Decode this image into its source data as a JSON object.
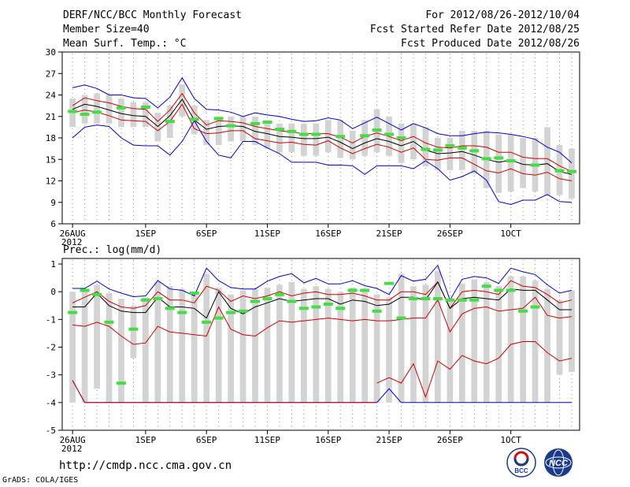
{
  "header": {
    "title": "DERF/NCC/BCC Monthly Forecast",
    "member_size": "Member Size=40",
    "period": "For 2012/08/26-2012/10/04",
    "fcst_start": "Fcst Started Refer Date 2012/08/25",
    "fcst_produced": "Fcst Produced Date 2012/08/26"
  },
  "footer": {
    "url": "http://cmdp.ncc.cma.gov.cn",
    "credit": "GrADS: COLA/IGES",
    "logo_bcc": "BCC",
    "logo_ncc": "NCC"
  },
  "colors": {
    "box": "#d3d3d3",
    "mean": "#000000",
    "quartile": "#cc0000",
    "extreme": "#0000cc",
    "observed": "#44dd44"
  },
  "chart_data": [
    {
      "type": "box",
      "title": "Mean Surf. Temp.: °C",
      "ylim": [
        6,
        30
      ],
      "yticks": [
        6,
        9,
        12,
        15,
        18,
        21,
        24,
        27,
        30
      ],
      "xticks": [
        {
          "day": 0,
          "label": "26AUG",
          "sub": "2012"
        },
        {
          "day": 6,
          "label": "1SEP"
        },
        {
          "day": 11,
          "label": "6SEP"
        },
        {
          "day": 16,
          "label": "11SEP"
        },
        {
          "day": 21,
          "label": "16SEP"
        },
        {
          "day": 26,
          "label": "21SEP"
        },
        {
          "day": 31,
          "label": "26SEP"
        },
        {
          "day": 36,
          "label": "1OCT"
        }
      ],
      "max": [
        25,
        25.4,
        24.9,
        24,
        24,
        23.6,
        23.5,
        22.2,
        23.7,
        26.4,
        23.5,
        22,
        21.9,
        21.6,
        21,
        21.5,
        21.2,
        21,
        20.6,
        20.3,
        20.4,
        20.8,
        20.5,
        19.3,
        20.1,
        20.9,
        20,
        19.1,
        20,
        19.4,
        18.6,
        18.3,
        18.3,
        18.6,
        18.8,
        18.7,
        18.5,
        18.2,
        17.8,
        16.7,
        16,
        14.5
      ],
      "q3": [
        22.5,
        23.6,
        23.2,
        22.9,
        22.4,
        22.1,
        22,
        20.3,
        21.9,
        24.2,
        21.5,
        19.8,
        20.4,
        20.3,
        20.1,
        19.6,
        19.3,
        19,
        18.8,
        18.6,
        18.6,
        18.6,
        18.1,
        17.3,
        18.2,
        18.7,
        18.2,
        17.6,
        18.2,
        17.3,
        16.7,
        16.6,
        16.9,
        16.9,
        16.7,
        16,
        16,
        15.3,
        15.1,
        15.1,
        14.1,
        13.3
      ],
      "mean": [
        22,
        22.7,
        22.4,
        21.9,
        21.4,
        21.1,
        21,
        19.6,
        21.1,
        23.4,
        20.5,
        19.2,
        19.6,
        19.7,
        19.6,
        18.9,
        18.6,
        18.2,
        18.1,
        17.9,
        17.9,
        18.1,
        17.4,
        16.5,
        17.3,
        17.9,
        17.5,
        16.9,
        17.5,
        16.3,
        15.8,
        15.9,
        16.1,
        15.6,
        15,
        14.6,
        14.9,
        14.3,
        14.2,
        14.4,
        13.3,
        12.9
      ],
      "q1": [
        21.5,
        21.9,
        21.6,
        21.1,
        20.5,
        20.4,
        20.3,
        19,
        20.3,
        22.7,
        19.3,
        18.6,
        18.7,
        19,
        19,
        17.9,
        17.6,
        17.3,
        17.4,
        17.1,
        17,
        17.6,
        16.6,
        15.8,
        16.5,
        17.1,
        16.7,
        16,
        16.6,
        15,
        14.9,
        15.2,
        15.2,
        14.3,
        13.4,
        13.1,
        13.7,
        13,
        12.8,
        13.2,
        12.3,
        12
      ],
      "min": [
        18,
        19.5,
        19.8,
        19.6,
        18,
        17,
        16.9,
        16.9,
        15.6,
        17.5,
        20.4,
        17.5,
        15.6,
        15.2,
        17.5,
        17.5,
        16.6,
        15.8,
        14.6,
        14.6,
        14.6,
        14.2,
        14.2,
        14.1,
        12.9,
        14.1,
        14.1,
        14.1,
        13.7,
        14.8,
        13.7,
        12.1,
        12.6,
        13.4,
        12.1,
        9.1,
        8.7,
        9.3,
        9.3,
        10.1,
        9.1,
        9
      ],
      "box_low": [
        19.5,
        20,
        20,
        20,
        19.5,
        19.5,
        19.5,
        17.5,
        18,
        21,
        18.5,
        17,
        17,
        17.5,
        17.5,
        17,
        16.5,
        16,
        16,
        15.5,
        15.5,
        16,
        15.2,
        15,
        15.5,
        16,
        15.5,
        14.5,
        15,
        14,
        13.5,
        13.5,
        13.5,
        13,
        11,
        10.3,
        10.5,
        11,
        10.5,
        10,
        10,
        9.5
      ],
      "box_high": [
        23.5,
        24,
        24.2,
        24,
        23.5,
        23,
        23,
        21.5,
        22.5,
        25.5,
        22.5,
        20.5,
        21,
        21,
        21,
        21,
        20,
        20,
        20,
        20,
        20,
        20.5,
        20.5,
        19,
        20.5,
        22,
        21,
        20,
        20,
        19.5,
        18,
        18,
        19,
        19,
        19,
        18.5,
        18.5,
        18,
        18,
        19.5,
        17,
        16.5
      ],
      "observed": [
        21.7,
        21.3,
        21.6,
        null,
        22.2,
        null,
        22.3,
        null,
        20.3,
        null,
        20.6,
        null,
        20.7,
        19.7,
        null,
        20,
        20.2,
        19.2,
        18.9,
        18.5,
        18.5,
        null,
        18.2,
        null,
        18.3,
        19.1,
        18.5,
        18,
        null,
        16.4,
        16.3,
        16.9,
        16.6,
        16.2,
        15.1,
        15.2,
        14.8,
        null,
        14.2,
        null,
        13.4,
        13.3
      ]
    },
    {
      "type": "box",
      "title": "Prec.: log(mm/d)",
      "ylim": [
        -5,
        1.2
      ],
      "yticks": [
        -5,
        -4,
        -3,
        -2,
        -1,
        0,
        1
      ],
      "xticks": [
        {
          "day": 0,
          "label": "26AUG",
          "sub": "2012"
        },
        {
          "day": 6,
          "label": "1SEP"
        },
        {
          "day": 11,
          "label": "6SEP"
        },
        {
          "day": 16,
          "label": "11SEP"
        },
        {
          "day": 21,
          "label": "16SEP"
        },
        {
          "day": 26,
          "label": "21SEP"
        },
        {
          "day": 31,
          "label": "26SEP"
        },
        {
          "day": 36,
          "label": "1OCT"
        }
      ],
      "max": [
        0.12,
        0.12,
        0.38,
        0.1,
        -0.05,
        -0.18,
        -0.15,
        0.4,
        0.1,
        0.05,
        -0.15,
        0.85,
        0.4,
        0.15,
        0.1,
        0.1,
        0.38,
        0.55,
        0.65,
        0.32,
        0.48,
        0.28,
        0.28,
        0.4,
        0.22,
        0.12,
        -0.1,
        0.58,
        0.38,
        0.45,
        0.95,
        -0.3,
        0.45,
        0.55,
        0.5,
        0.3,
        0.85,
        0.72,
        0.62,
        0.25,
        -0.05,
        0.05
      ],
      "q3": [
        -0.4,
        -0.2,
        0.0,
        -0.35,
        -0.55,
        -0.6,
        -0.5,
        0.0,
        -0.3,
        -0.3,
        -0.4,
        0.2,
        0.05,
        -0.35,
        -0.15,
        -0.25,
        -0.15,
        0.0,
        -0.15,
        -0.05,
        0.0,
        -0.1,
        -0.1,
        -0.05,
        -0.15,
        -0.3,
        -0.3,
        0.0,
        0.0,
        -0.1,
        0.35,
        -0.6,
        0.0,
        0.05,
        0.0,
        -0.1,
        0.4,
        0.2,
        0.15,
        -0.1,
        -0.4,
        -0.3
      ],
      "mean": [
        -0.55,
        -0.55,
        -0.05,
        -0.5,
        -0.7,
        -0.75,
        -0.75,
        -0.2,
        -0.55,
        -0.55,
        -0.6,
        -0.95,
        0.0,
        -0.6,
        -0.8,
        -0.55,
        -0.4,
        -0.25,
        -0.35,
        -0.3,
        -0.25,
        -0.25,
        -0.45,
        -0.3,
        -0.35,
        -0.5,
        -0.45,
        -0.2,
        -0.2,
        -0.3,
        0.35,
        -0.6,
        -0.25,
        -0.2,
        -0.25,
        -0.3,
        0.1,
        0.05,
        0.05,
        -0.3,
        -0.65,
        -0.65
      ],
      "q1": [
        -1.2,
        -1.25,
        -1.1,
        -1.25,
        -1.6,
        -1.9,
        -1.85,
        -1.25,
        -1.45,
        -1.5,
        -1.55,
        -1.6,
        -0.55,
        -1.35,
        -1.55,
        -1.6,
        -1.3,
        -1.05,
        -1.1,
        -1.05,
        -1.0,
        -0.95,
        -1.0,
        -1.05,
        -1.0,
        -1.05,
        -1.05,
        -1.0,
        -0.95,
        -0.95,
        -0.3,
        -1.45,
        -0.8,
        -0.6,
        -0.55,
        -0.7,
        -0.65,
        -0.6,
        -0.2,
        -0.85,
        -0.95,
        -0.9
      ],
      "min": [
        -3.2,
        -4,
        -4,
        -4,
        -4,
        -4,
        -4,
        -4,
        -4,
        -4,
        -4,
        -4,
        -4,
        -4,
        -4,
        -4,
        -4,
        -4,
        -4,
        -4,
        -4,
        -4,
        -4,
        -4,
        -4,
        -4,
        -3.5,
        -4,
        -4,
        -4,
        -4,
        -4,
        -4,
        -4,
        -4,
        -4,
        -4,
        -4,
        -4,
        -4,
        -4,
        -4
      ],
      "q1min": [
        null,
        null,
        null,
        null,
        null,
        null,
        null,
        null,
        null,
        null,
        null,
        null,
        null,
        null,
        null,
        null,
        null,
        null,
        null,
        null,
        null,
        null,
        null,
        null,
        null,
        -3.3,
        -3.1,
        -3.3,
        -2.6,
        -3.8,
        -2.5,
        -2.8,
        -2.3,
        -2.5,
        -2.6,
        -2.4,
        -1.9,
        -1.8,
        -1.8,
        -2.2,
        -2.5,
        -2.4
      ],
      "q1min_start": 26,
      "box_low": [
        -4,
        -4,
        -3.5,
        -4,
        -4,
        -2.4,
        -4,
        -4,
        -4,
        -4,
        -4,
        -4,
        -4,
        -4,
        -4,
        -4,
        -4,
        -4,
        -4,
        -4,
        -4,
        -4,
        -4,
        -4,
        -4,
        -4,
        -4,
        -4,
        -4,
        -4,
        -4,
        -4,
        -4,
        -4,
        -4,
        -4,
        -4,
        -4,
        -4,
        -4,
        -3,
        -2.9
      ],
      "box_high": [
        0.0,
        0.1,
        0.25,
        -0.05,
        -0.25,
        -0.5,
        -0.2,
        0.35,
        0.2,
        0.1,
        -0.1,
        0.65,
        0.15,
        -0.1,
        0.05,
        0.1,
        0.15,
        0.25,
        0.35,
        0.1,
        0.2,
        0.1,
        0.0,
        0.15,
        0.0,
        -0.1,
        -0.2,
        0.65,
        0.2,
        0.25,
        0.75,
        -0.3,
        0.3,
        0.45,
        0.35,
        0.2,
        0.55,
        0.55,
        0.4,
        0.1,
        -0.3,
        0.05
      ],
      "observed": [
        -0.75,
        0.05,
        -0.1,
        -1.1,
        -3.3,
        -1.35,
        -0.3,
        -0.25,
        -0.6,
        -0.75,
        -0.05,
        -1.1,
        -0.95,
        -0.75,
        -0.7,
        -0.35,
        -0.25,
        -0.1,
        -0.35,
        -0.6,
        -0.55,
        -0.45,
        -0.6,
        0.05,
        0.05,
        -0.7,
        0.3,
        -0.95,
        -0.25,
        -0.25,
        -0.25,
        -0.3,
        -0.3,
        -0.3,
        0.2,
        0.05,
        0.05,
        -0.7,
        -0.55,
        null,
        null,
        null
      ]
    }
  ]
}
